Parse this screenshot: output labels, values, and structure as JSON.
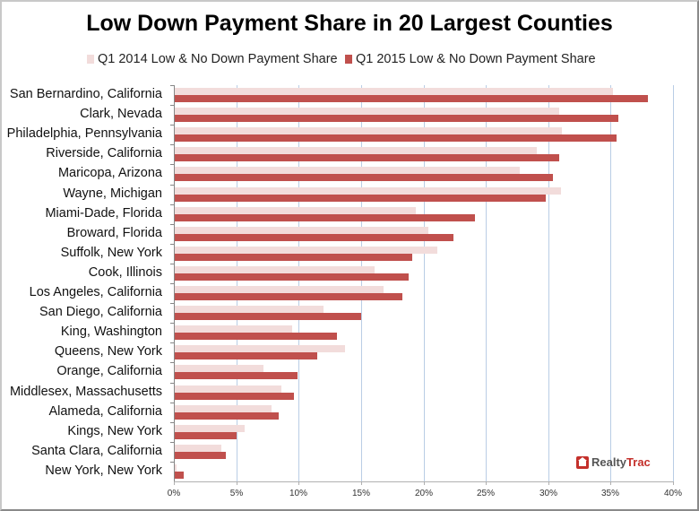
{
  "chart_data": {
    "type": "bar",
    "orientation": "horizontal",
    "title": "Low Down Payment Share in 20 Largest Counties",
    "xlabel": "",
    "ylabel": "",
    "xlim": [
      0,
      40
    ],
    "x_ticks": [
      "0%",
      "5%",
      "10%",
      "15%",
      "20%",
      "25%",
      "30%",
      "35%",
      "40%"
    ],
    "grid": true,
    "legend_position": "top",
    "categories": [
      "San Bernardino, California",
      "Clark, Nevada",
      "Philadelphia, Pennsylvania",
      "Riverside, California",
      "Maricopa, Arizona",
      "Wayne, Michigan",
      "Miami-Dade, Florida",
      "Broward, Florida",
      "Suffolk, New York",
      "Cook, Illinois",
      "Los Angeles, California",
      "San Diego, California",
      "King, Washington",
      "Queens, New York",
      "Orange, California",
      "Middlesex, Massachusetts",
      "Alameda, California",
      "Kings, New York",
      "Santa Clara, California",
      "New York, New York"
    ],
    "series": [
      {
        "name": "Q1 2014 Low & No Down Payment Share",
        "color": "#f2dcdb",
        "values": [
          35.2,
          30.9,
          31.1,
          29.1,
          27.7,
          31.0,
          19.4,
          20.4,
          21.1,
          16.1,
          16.8,
          12.0,
          9.5,
          13.7,
          7.2,
          8.6,
          7.8,
          5.7,
          3.8,
          0.2
        ]
      },
      {
        "name": "Q1 2015 Low & No Down Payment Share",
        "color": "#c0504d",
        "values": [
          38.0,
          35.6,
          35.5,
          30.9,
          30.4,
          29.8,
          24.1,
          22.4,
          19.1,
          18.8,
          18.3,
          15.0,
          13.1,
          11.5,
          9.9,
          9.6,
          8.4,
          5.0,
          4.2,
          0.8
        ]
      }
    ],
    "annotations": [
      "RealtyTrac"
    ]
  },
  "logo": {
    "part1": "Realty",
    "part2": "Trac"
  }
}
